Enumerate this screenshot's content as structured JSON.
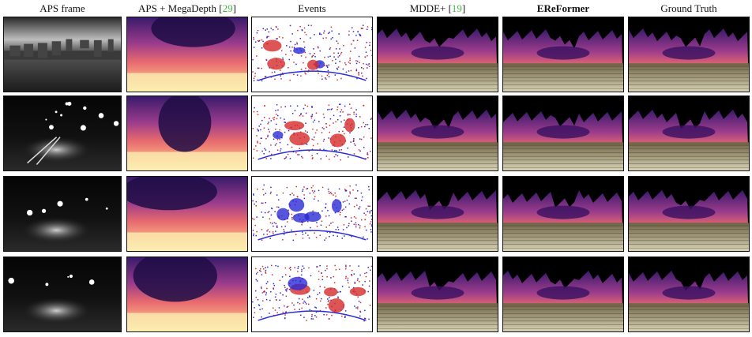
{
  "figure": {
    "columns": [
      {
        "label": "APS frame",
        "bold": false,
        "cite": ""
      },
      {
        "label": "APS + MegaDepth [",
        "bold": false,
        "cite": "29",
        "suffix": "]"
      },
      {
        "label": "Events",
        "bold": false,
        "cite": ""
      },
      {
        "label": "MDDE+ [",
        "bold": false,
        "cite": "19",
        "suffix": "]"
      },
      {
        "label": "EReFormer",
        "bold": true,
        "cite": ""
      },
      {
        "label": "Ground Truth",
        "bold": false,
        "cite": ""
      }
    ],
    "rows": 4,
    "colors": {
      "citation": "#3fb83f",
      "border": "#111111",
      "magma_dark": "#1b0c3a",
      "magma_mid": "#c7457a",
      "magma_light": "#fbf1b0",
      "event_pos": "#2b2bd6",
      "event_neg": "#d62b2b"
    }
  }
}
